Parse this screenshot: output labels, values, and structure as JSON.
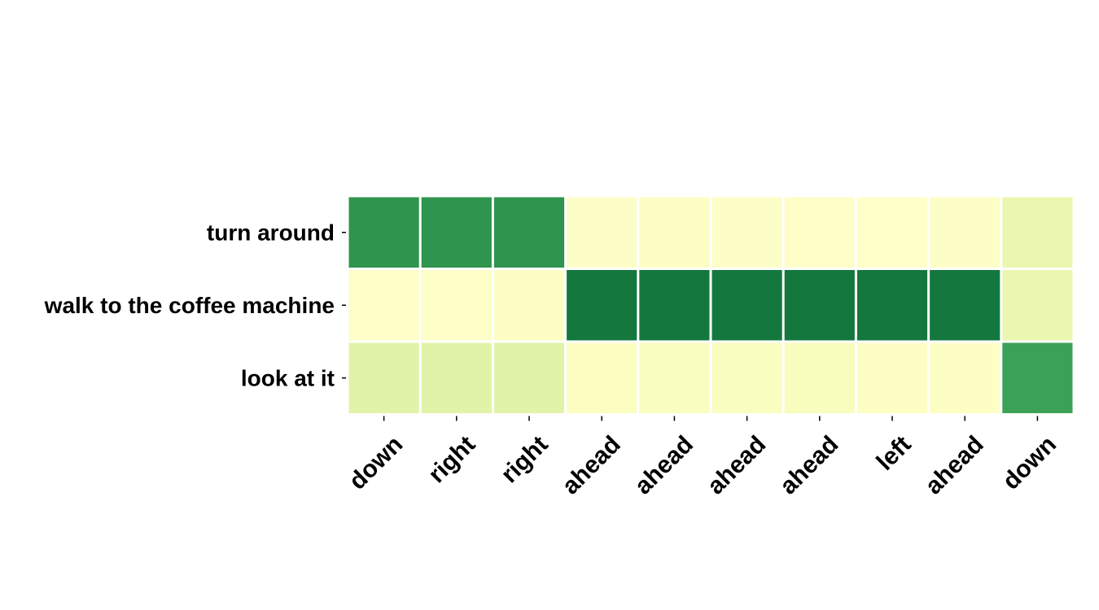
{
  "chart_data": {
    "type": "heatmap",
    "rows": [
      "turn around",
      "walk to the coffee machine",
      "look at it"
    ],
    "columns": [
      "down",
      "right",
      "right",
      "ahead",
      "ahead",
      "ahead",
      "ahead",
      "left",
      "ahead",
      "down"
    ],
    "values": [
      [
        0.8,
        0.8,
        0.8,
        0.04,
        0.05,
        0.04,
        0.03,
        0.02,
        0.04,
        0.2
      ],
      [
        0.03,
        0.03,
        0.06,
        0.92,
        0.92,
        0.92,
        0.92,
        0.92,
        0.92,
        0.2
      ],
      [
        0.25,
        0.25,
        0.25,
        0.08,
        0.1,
        0.1,
        0.12,
        0.06,
        0.06,
        0.75
      ]
    ],
    "value_range": [
      0,
      1
    ],
    "colormap": "YlGn",
    "colormap_stops": [
      "#ffffcc",
      "#f7fcb9",
      "#d9f0a3",
      "#addd8e",
      "#78c679",
      "#41ab5d",
      "#238443",
      "#006837"
    ],
    "cell_border_color": "#ffffff",
    "colorbar": false,
    "title": "",
    "xlabel": "",
    "ylabel": ""
  }
}
